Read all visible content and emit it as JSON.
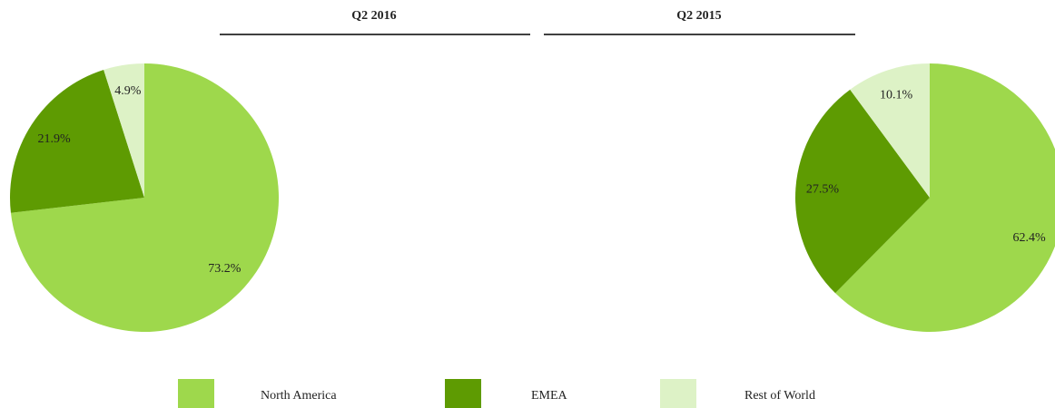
{
  "chart_data": [
    {
      "type": "pie",
      "title": "Q2 2016",
      "categories": [
        "North America",
        "EMEA",
        "Rest of World"
      ],
      "values": [
        73.2,
        21.9,
        4.9
      ],
      "value_labels": [
        "73.2%",
        "21.9%",
        "4.9%"
      ],
      "colors": [
        "#9ed84c",
        "#5e9b02",
        "#ddf2c6"
      ]
    },
    {
      "type": "pie",
      "title": "Q2 2015",
      "categories": [
        "North America",
        "EMEA",
        "Rest of World"
      ],
      "values": [
        62.4,
        27.5,
        10.1
      ],
      "value_labels": [
        "62.4%",
        "27.5%",
        "10.1%"
      ],
      "colors": [
        "#9ed84c",
        "#5e9b02",
        "#ddf2c6"
      ]
    }
  ]
}
